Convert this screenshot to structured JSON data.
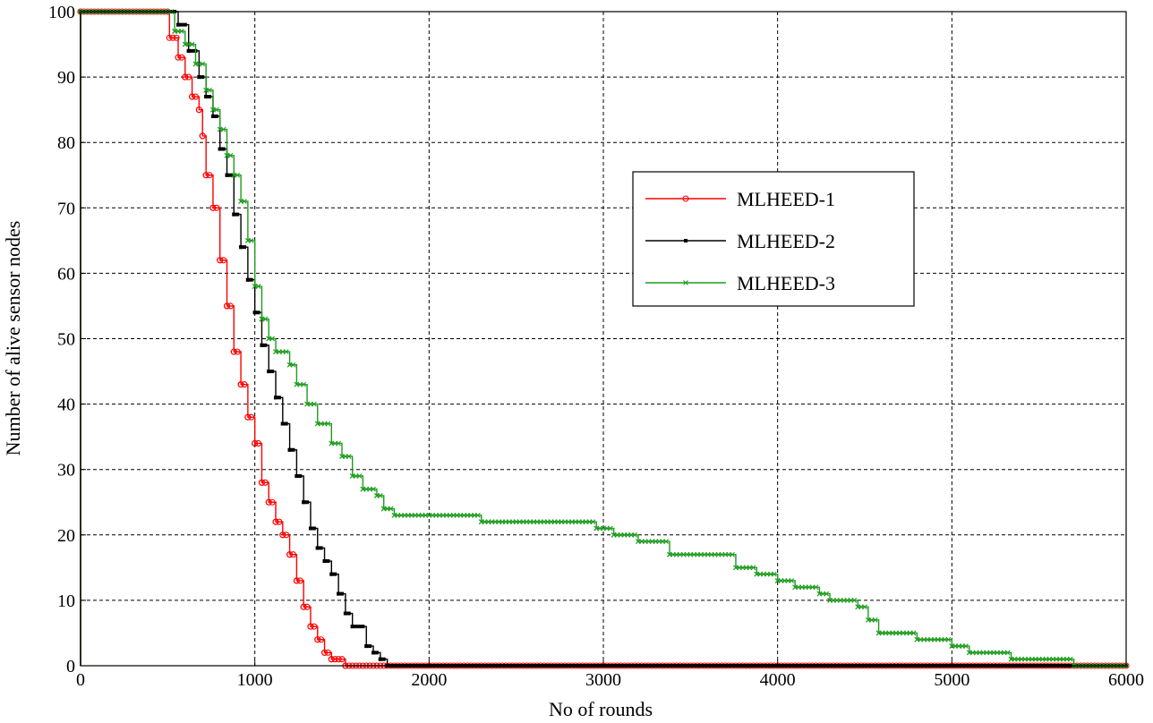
{
  "chart_data": {
    "type": "line",
    "title": "",
    "xlabel": "No of rounds",
    "ylabel": "Number of alive sensor nodes",
    "xlim": [
      0,
      6000
    ],
    "ylim": [
      0,
      100
    ],
    "xticks": [
      0,
      1000,
      2000,
      3000,
      4000,
      5000,
      6000
    ],
    "yticks": [
      0,
      10,
      20,
      30,
      40,
      50,
      60,
      70,
      80,
      90,
      100
    ],
    "grid": true,
    "legend_position": "upper-right",
    "series": [
      {
        "name": "MLHEED-1",
        "color": "#ff0000",
        "marker": "circle",
        "points": [
          [
            0,
            0
          ],
          [
            0,
            100
          ],
          [
            480,
            100
          ],
          [
            510,
            96
          ],
          [
            560,
            93
          ],
          [
            600,
            90
          ],
          [
            640,
            87
          ],
          [
            680,
            85
          ],
          [
            700,
            81
          ],
          [
            720,
            75
          ],
          [
            760,
            70
          ],
          [
            800,
            62
          ],
          [
            840,
            55
          ],
          [
            880,
            48
          ],
          [
            920,
            43
          ],
          [
            960,
            38
          ],
          [
            1000,
            34
          ],
          [
            1040,
            28
          ],
          [
            1080,
            25
          ],
          [
            1120,
            22
          ],
          [
            1160,
            20
          ],
          [
            1200,
            17
          ],
          [
            1240,
            13
          ],
          [
            1280,
            9
          ],
          [
            1320,
            6
          ],
          [
            1360,
            4
          ],
          [
            1400,
            2
          ],
          [
            1440,
            1
          ],
          [
            1480,
            1
          ],
          [
            1520,
            0
          ],
          [
            6000,
            0
          ]
        ]
      },
      {
        "name": "MLHEED-2",
        "color": "#000000",
        "marker": "square",
        "points": [
          [
            0,
            0
          ],
          [
            0,
            100
          ],
          [
            500,
            100
          ],
          [
            560,
            98
          ],
          [
            620,
            94
          ],
          [
            680,
            90
          ],
          [
            720,
            87
          ],
          [
            760,
            84
          ],
          [
            800,
            79
          ],
          [
            840,
            75
          ],
          [
            880,
            69
          ],
          [
            920,
            64
          ],
          [
            960,
            59
          ],
          [
            1000,
            54
          ],
          [
            1040,
            49
          ],
          [
            1080,
            45
          ],
          [
            1120,
            41
          ],
          [
            1160,
            37
          ],
          [
            1200,
            33
          ],
          [
            1240,
            29
          ],
          [
            1280,
            25
          ],
          [
            1320,
            21
          ],
          [
            1360,
            18
          ],
          [
            1400,
            16
          ],
          [
            1440,
            14
          ],
          [
            1480,
            11
          ],
          [
            1520,
            8
          ],
          [
            1560,
            6
          ],
          [
            1600,
            6
          ],
          [
            1640,
            3
          ],
          [
            1680,
            2
          ],
          [
            1720,
            1
          ],
          [
            1760,
            0
          ],
          [
            5700,
            0
          ],
          [
            6000,
            0
          ]
        ]
      },
      {
        "name": "MLHEED-3",
        "color": "#1e9c1e",
        "marker": "x",
        "points": [
          [
            0,
            0
          ],
          [
            0,
            100
          ],
          [
            500,
            100
          ],
          [
            540,
            97
          ],
          [
            600,
            95
          ],
          [
            660,
            92
          ],
          [
            720,
            88
          ],
          [
            760,
            85
          ],
          [
            800,
            82
          ],
          [
            840,
            78
          ],
          [
            880,
            75
          ],
          [
            920,
            71
          ],
          [
            960,
            65
          ],
          [
            1000,
            58
          ],
          [
            1040,
            53
          ],
          [
            1080,
            50
          ],
          [
            1120,
            48
          ],
          [
            1200,
            46
          ],
          [
            1240,
            43
          ],
          [
            1300,
            40
          ],
          [
            1360,
            37
          ],
          [
            1440,
            34
          ],
          [
            1500,
            32
          ],
          [
            1560,
            29
          ],
          [
            1620,
            27
          ],
          [
            1700,
            26
          ],
          [
            1740,
            24
          ],
          [
            1800,
            23
          ],
          [
            2200,
            23
          ],
          [
            2300,
            22
          ],
          [
            2900,
            22
          ],
          [
            2960,
            21
          ],
          [
            3060,
            20
          ],
          [
            3200,
            19
          ],
          [
            3380,
            17
          ],
          [
            3700,
            17
          ],
          [
            3760,
            15
          ],
          [
            3880,
            14
          ],
          [
            4000,
            13
          ],
          [
            4100,
            12
          ],
          [
            4240,
            11
          ],
          [
            4300,
            10
          ],
          [
            4460,
            9
          ],
          [
            4520,
            7
          ],
          [
            4580,
            5
          ],
          [
            4700,
            5
          ],
          [
            4800,
            4
          ],
          [
            5000,
            3
          ],
          [
            5100,
            2
          ],
          [
            5340,
            1
          ],
          [
            5700,
            0
          ],
          [
            6000,
            0
          ]
        ]
      }
    ]
  }
}
